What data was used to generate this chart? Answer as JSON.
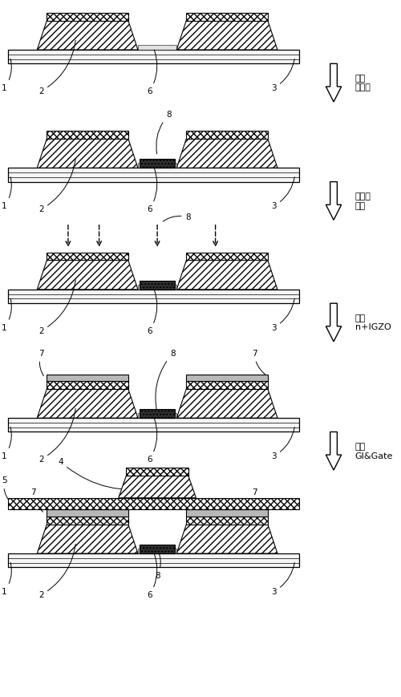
{
  "fig_width": 5.0,
  "fig_height": 8.69,
  "bg_color": "#ffffff",
  "arrow_labels": [
    "制备\n保护层",
    "等离子\n处理",
    "形成\nn+IGZO",
    "制备\nGI&Gate"
  ],
  "text_color": "#000000",
  "substrate_fc": "#f0f0f0",
  "igzo_fc": "#ffffff",
  "metal_fc": "#ffffff",
  "prot_fc": "#404040",
  "nplus_fc": "#b0b0b0",
  "gi_fc": "#ffffff",
  "gate_fc": "#ffffff"
}
